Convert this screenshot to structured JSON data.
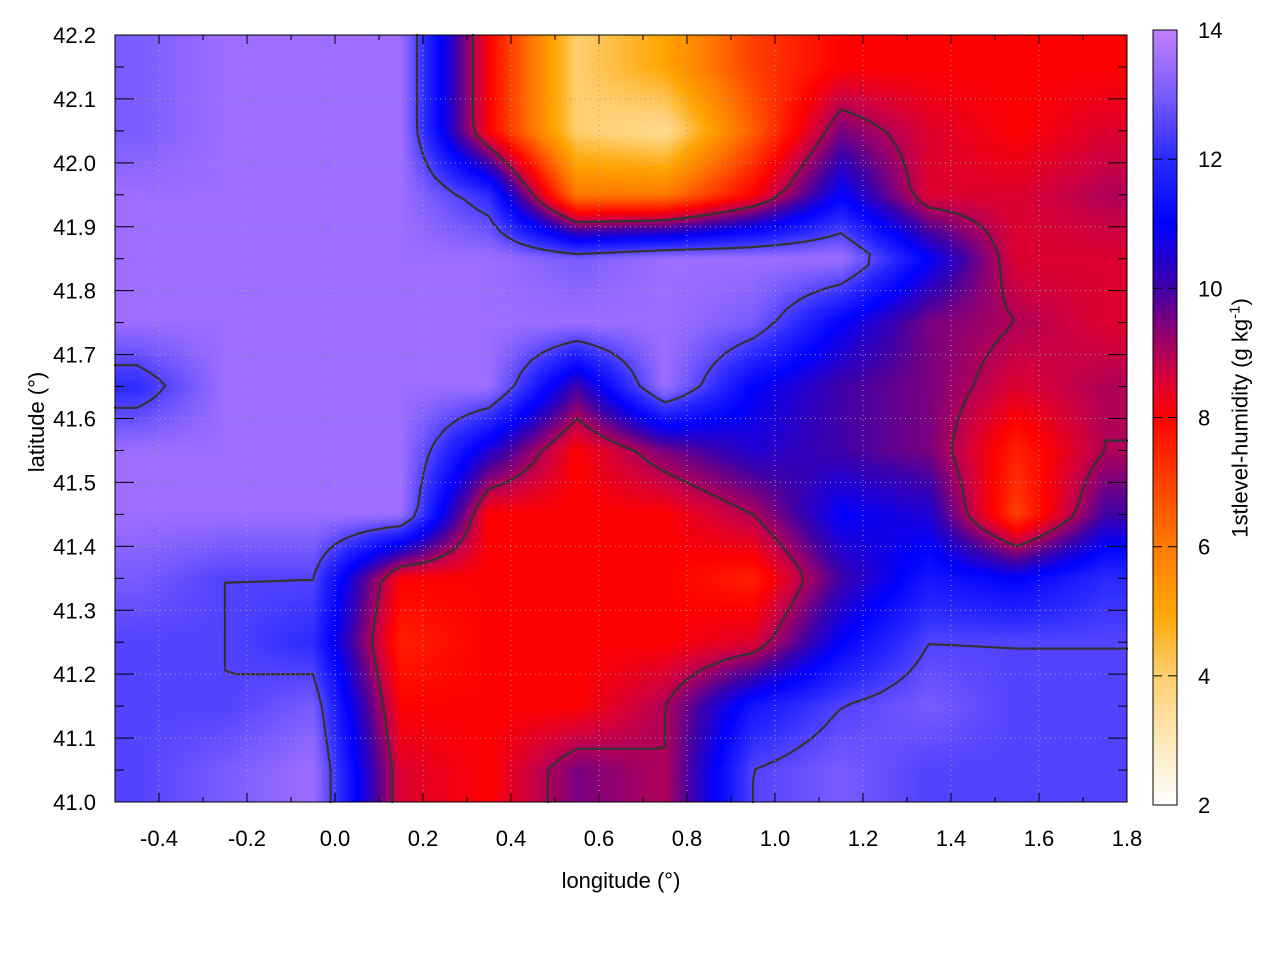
{
  "chart_data": {
    "type": "heatmap",
    "title": "",
    "xlabel": "longitude (°)",
    "ylabel": "latitude (°)",
    "xlim": [
      -0.5,
      1.8
    ],
    "ylim": [
      41.0,
      42.2
    ],
    "xticks": [
      -0.4,
      -0.2,
      0.0,
      0.2,
      0.4,
      0.6,
      0.8,
      1.0,
      1.2,
      1.4,
      1.6,
      1.8
    ],
    "yticks": [
      41.0,
      41.1,
      41.2,
      41.3,
      41.4,
      41.5,
      41.6,
      41.7,
      41.8,
      41.9,
      42.0,
      42.1,
      42.2
    ],
    "grid": true,
    "colorbar": {
      "label": {
        "text": "1stlevel-humidity (g kg",
        "sup": "-1",
        "suffix": ")"
      },
      "range": [
        2,
        14
      ],
      "ticks": [
        2,
        4,
        6,
        8,
        10,
        12,
        14
      ],
      "colormap": [
        [
          2,
          "#ffffff"
        ],
        [
          4,
          "#ffcf70"
        ],
        [
          5,
          "#ffa500"
        ],
        [
          6,
          "#ff7a00"
        ],
        [
          7,
          "#ff4000"
        ],
        [
          8,
          "#ff0000"
        ],
        [
          8.7,
          "#d00040"
        ],
        [
          9.3,
          "#900070"
        ],
        [
          10,
          "#4000a8"
        ],
        [
          11,
          "#0000ff"
        ],
        [
          12,
          "#2a2aff"
        ],
        [
          13,
          "#7a5cff"
        ],
        [
          14,
          "#c080ff"
        ]
      ]
    },
    "grid_x": [
      -0.45,
      -0.25,
      -0.05,
      0.15,
      0.35,
      0.55,
      0.75,
      0.95,
      1.15,
      1.35,
      1.55,
      1.75
    ],
    "grid_y": [
      42.15,
      42.05,
      41.95,
      41.85,
      41.75,
      41.65,
      41.55,
      41.45,
      41.35,
      41.25,
      41.15,
      41.05
    ],
    "values": [
      [
        13,
        13.5,
        13.5,
        13.5,
        8,
        4,
        5,
        7,
        8,
        8,
        8,
        8
      ],
      [
        13,
        13.5,
        13.5,
        13.5,
        8,
        4,
        3.5,
        6.5,
        9.5,
        8.5,
        8,
        8.5
      ],
      [
        13.5,
        13.5,
        13.5,
        13.5,
        12,
        6,
        6,
        8,
        11,
        8.5,
        8.5,
        9
      ],
      [
        13.5,
        13.5,
        13.5,
        13.5,
        13.5,
        13,
        13.5,
        13.5,
        13.5,
        11,
        8.5,
        8.5
      ],
      [
        13.5,
        13.5,
        13.5,
        13.5,
        13.5,
        13.5,
        13.5,
        13,
        11,
        9.5,
        9,
        8.5
      ],
      [
        12,
        13.5,
        13.5,
        13.5,
        13.5,
        10,
        13.5,
        11,
        10,
        9.5,
        8.5,
        9
      ],
      [
        13.5,
        13.5,
        13.5,
        13.5,
        10.5,
        8,
        9.5,
        10.5,
        10,
        9.5,
        7.5,
        9
      ],
      [
        13.5,
        13.5,
        13.5,
        13.5,
        8,
        8,
        8,
        9,
        11,
        10.5,
        7,
        10
      ],
      [
        13,
        12.5,
        12.5,
        8,
        8,
        8,
        8,
        7.5,
        10,
        11.5,
        11,
        12
      ],
      [
        12.5,
        12.5,
        12,
        7.5,
        8,
        8,
        8,
        8.5,
        11,
        12.5,
        12.5,
        12.5
      ],
      [
        12.5,
        12.5,
        13,
        8,
        8,
        8,
        9,
        11.5,
        12.5,
        13,
        12.5,
        12.5
      ],
      [
        12.5,
        13,
        13.5,
        8.5,
        8,
        9.5,
        9,
        12.5,
        13,
        12.5,
        12.5,
        12.5
      ]
    ],
    "contour_levels": [
      9,
      12.5
    ]
  }
}
